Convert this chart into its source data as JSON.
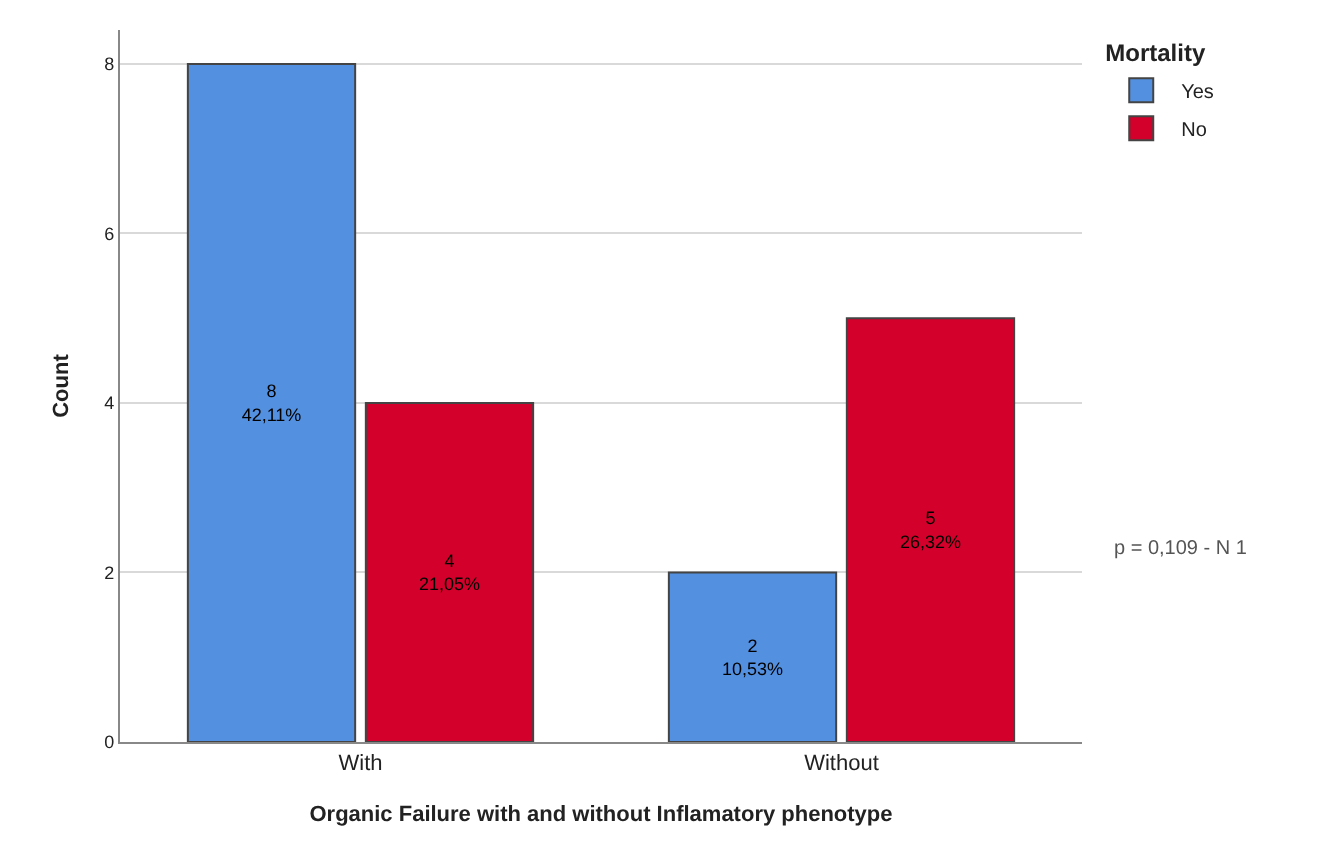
{
  "chart_data": {
    "type": "bar",
    "xlabel": "Organic Failure with and without Inflamatory phenotype",
    "ylabel": "Count",
    "legend_title": "Mortality",
    "categories": [
      "With",
      "Without"
    ],
    "series": [
      {
        "name": "Yes",
        "color": "#5390e0",
        "values": [
          8,
          2
        ],
        "value_labels": [
          "8\n42,11%",
          "2\n10,53%"
        ]
      },
      {
        "name": "No",
        "color": "#d2002a",
        "values": [
          4,
          5
        ],
        "value_labels": [
          "4\n21,05%",
          "5\n26,32%"
        ]
      }
    ],
    "ylim": [
      0,
      8.4
    ],
    "yticks": [
      0,
      2,
      4,
      6,
      8
    ],
    "grid": "y",
    "legend": "top right",
    "annotations": [
      "p = 0,109 - N 1"
    ]
  }
}
